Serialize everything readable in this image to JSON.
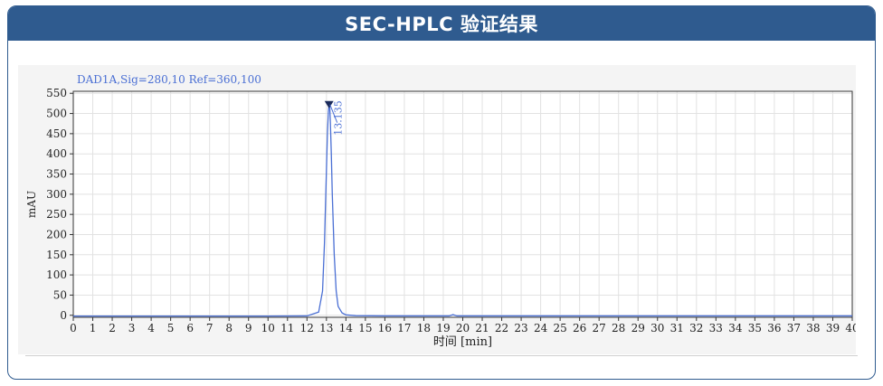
{
  "header": {
    "title": "SEC-HPLC 验证结果"
  },
  "signal_label": "DAD1A,Sig=280,10  Ref=360,100",
  "chart_data": {
    "type": "line",
    "xlabel": "时间 [min]",
    "ylabel": "mAU",
    "xlim": [
      0,
      40
    ],
    "ylim": [
      -5,
      555
    ],
    "xticks": [
      0,
      1,
      2,
      3,
      4,
      5,
      6,
      7,
      8,
      9,
      10,
      11,
      12,
      13,
      14,
      15,
      16,
      17,
      18,
      19,
      20,
      21,
      22,
      23,
      24,
      25,
      26,
      27,
      28,
      29,
      30,
      31,
      32,
      33,
      34,
      35,
      36,
      37,
      38,
      39,
      40
    ],
    "yticks": [
      0,
      50,
      100,
      150,
      200,
      250,
      300,
      350,
      400,
      450,
      500,
      550
    ],
    "grid": true,
    "line_color": "#4a6fd4",
    "peak_marker_color": "#1a2a5a",
    "series": [
      {
        "x": [
          0,
          5,
          10,
          12,
          12.6,
          12.8,
          12.9,
          13.0,
          13.05,
          13.1,
          13.135,
          13.17,
          13.2,
          13.25,
          13.3,
          13.4,
          13.5,
          13.6,
          13.8,
          14.0,
          14.5,
          16,
          19.3,
          19.5,
          19.7,
          22,
          30,
          40
        ],
        "y": [
          -2,
          -2,
          -2,
          -1.5,
          8,
          60,
          180,
          360,
          450,
          505,
          522,
          515,
          480,
          400,
          300,
          150,
          60,
          22,
          6,
          1,
          -1,
          -1.5,
          -1.5,
          1.5,
          -1.5,
          -1.5,
          -1.5,
          -1.5
        ]
      }
    ],
    "annotations": [
      {
        "x": 13.135,
        "y": 522,
        "text": "13.135"
      }
    ]
  }
}
